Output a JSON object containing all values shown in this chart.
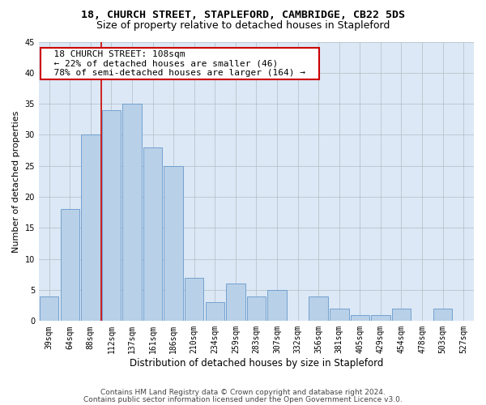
{
  "title1": "18, CHURCH STREET, STAPLEFORD, CAMBRIDGE, CB22 5DS",
  "title2": "Size of property relative to detached houses in Stapleford",
  "xlabel": "Distribution of detached houses by size in Stapleford",
  "ylabel": "Number of detached properties",
  "categories": [
    "39sqm",
    "64sqm",
    "88sqm",
    "112sqm",
    "137sqm",
    "161sqm",
    "186sqm",
    "210sqm",
    "234sqm",
    "259sqm",
    "283sqm",
    "307sqm",
    "332sqm",
    "356sqm",
    "381sqm",
    "405sqm",
    "429sqm",
    "454sqm",
    "478sqm",
    "503sqm",
    "527sqm"
  ],
  "values": [
    4,
    18,
    30,
    34,
    35,
    28,
    25,
    7,
    3,
    6,
    4,
    5,
    0,
    4,
    2,
    1,
    1,
    2,
    0,
    2,
    0
  ],
  "bar_color": "#b8d0e8",
  "bar_edge_color": "#6699cc",
  "background_color": "#ffffff",
  "axes_bg_color": "#dce8f5",
  "grid_color": "#b0bec5",
  "annotation_text": "  18 CHURCH STREET: 108sqm  \n  ← 22% of detached houses are smaller (46)  \n  78% of semi-detached houses are larger (164) →  ",
  "vline_color": "#cc0000",
  "box_edge_color": "#cc0000",
  "ylim": [
    0,
    45
  ],
  "yticks": [
    0,
    5,
    10,
    15,
    20,
    25,
    30,
    35,
    40,
    45
  ],
  "footer1": "Contains HM Land Registry data © Crown copyright and database right 2024.",
  "footer2": "Contains public sector information licensed under the Open Government Licence v3.0.",
  "title1_fontsize": 9.5,
  "title2_fontsize": 9,
  "xlabel_fontsize": 8.5,
  "ylabel_fontsize": 8,
  "tick_fontsize": 7,
  "annotation_fontsize": 8,
  "footer_fontsize": 6.5
}
